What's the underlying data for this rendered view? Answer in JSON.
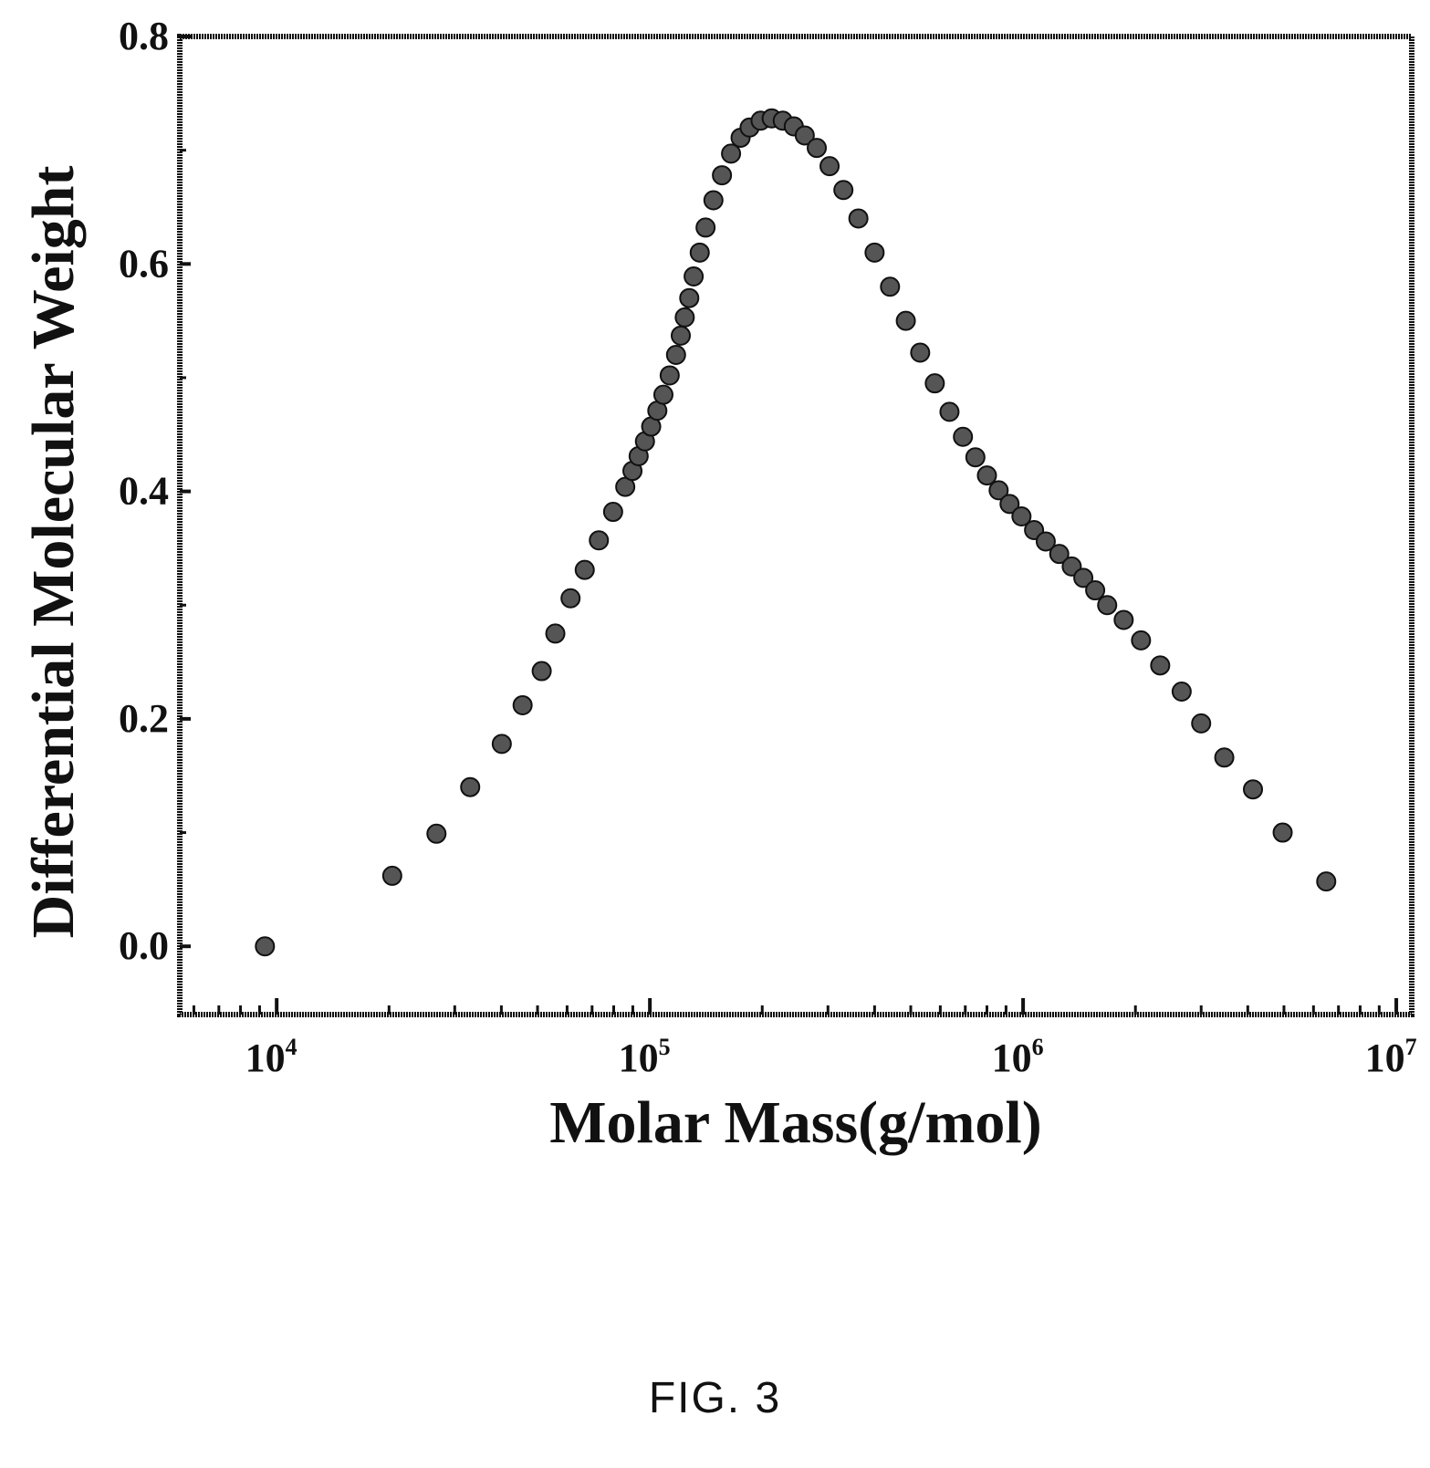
{
  "figure_caption": "FIG. 3",
  "colors": {
    "ink": "#111111",
    "marker": "#555555",
    "background": "#ffffff"
  },
  "chart_data": {
    "type": "scatter",
    "xlabel": "Molar Mass(g/mol)",
    "ylabel": "Differential Molecular Weight",
    "x_scale": "log",
    "xlim": [
      5500,
      11000000
    ],
    "ylim": [
      -0.06,
      0.8
    ],
    "x_ticks": [
      {
        "value": 10000,
        "base": "10",
        "exp": "4"
      },
      {
        "value": 100000,
        "base": "10",
        "exp": "5"
      },
      {
        "value": 1000000,
        "base": "10",
        "exp": "6"
      },
      {
        "value": 10000000,
        "base": "10",
        "exp": "7"
      }
    ],
    "y_ticks": [
      {
        "value": 0.0,
        "label": "0.0"
      },
      {
        "value": 0.2,
        "label": "0.2"
      },
      {
        "value": 0.4,
        "label": "0.4"
      },
      {
        "value": 0.6,
        "label": "0.6"
      },
      {
        "value": 0.8,
        "label": "0.8"
      }
    ],
    "grid": false,
    "legend": "none",
    "series": [
      {
        "marker": "circle",
        "points": [
          [
            9300,
            0.0
          ],
          [
            20400,
            0.062
          ],
          [
            26800,
            0.099
          ],
          [
            33000,
            0.14
          ],
          [
            40100,
            0.178
          ],
          [
            45600,
            0.212
          ],
          [
            51300,
            0.242
          ],
          [
            55800,
            0.275
          ],
          [
            61300,
            0.306
          ],
          [
            66900,
            0.331
          ],
          [
            73000,
            0.357
          ],
          [
            79700,
            0.382
          ],
          [
            85900,
            0.404
          ],
          [
            89800,
            0.418
          ],
          [
            93300,
            0.431
          ],
          [
            97000,
            0.444
          ],
          [
            100800,
            0.457
          ],
          [
            104700,
            0.471
          ],
          [
            108700,
            0.485
          ],
          [
            113000,
            0.502
          ],
          [
            117500,
            0.52
          ],
          [
            121000,
            0.537
          ],
          [
            124000,
            0.553
          ],
          [
            127500,
            0.57
          ],
          [
            131000,
            0.589
          ],
          [
            136000,
            0.61
          ],
          [
            141000,
            0.632
          ],
          [
            148000,
            0.656
          ],
          [
            156000,
            0.678
          ],
          [
            165000,
            0.697
          ],
          [
            175000,
            0.711
          ],
          [
            185000,
            0.72
          ],
          [
            198000,
            0.726
          ],
          [
            212000,
            0.728
          ],
          [
            227000,
            0.726
          ],
          [
            243000,
            0.721
          ],
          [
            260000,
            0.713
          ],
          [
            280000,
            0.702
          ],
          [
            303000,
            0.686
          ],
          [
            330000,
            0.665
          ],
          [
            362000,
            0.64
          ],
          [
            400000,
            0.61
          ],
          [
            440000,
            0.58
          ],
          [
            485000,
            0.55
          ],
          [
            530000,
            0.522
          ],
          [
            580000,
            0.495
          ],
          [
            635000,
            0.47
          ],
          [
            690000,
            0.448
          ],
          [
            745000,
            0.43
          ],
          [
            800000,
            0.414
          ],
          [
            860000,
            0.401
          ],
          [
            920000,
            0.389
          ],
          [
            990000,
            0.378
          ],
          [
            1070000,
            0.366
          ],
          [
            1150000,
            0.356
          ],
          [
            1250000,
            0.345
          ],
          [
            1350000,
            0.334
          ],
          [
            1450000,
            0.324
          ],
          [
            1560000,
            0.313
          ],
          [
            1680000,
            0.3
          ],
          [
            1860000,
            0.287
          ],
          [
            2070000,
            0.269
          ],
          [
            2330000,
            0.247
          ],
          [
            2660000,
            0.224
          ],
          [
            3000000,
            0.196
          ],
          [
            3460000,
            0.166
          ],
          [
            4130000,
            0.138
          ],
          [
            4960000,
            0.1
          ],
          [
            6490000,
            0.057
          ]
        ]
      }
    ]
  }
}
